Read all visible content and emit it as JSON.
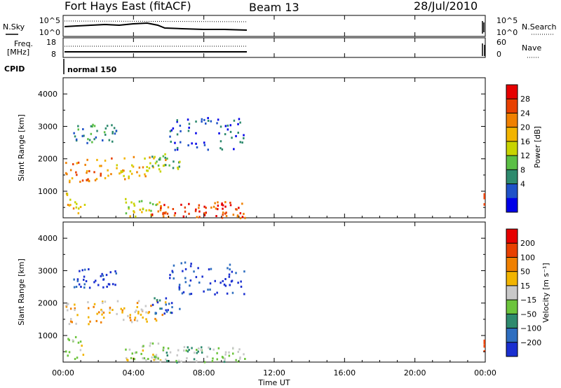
{
  "header": {
    "title": "Fort Hays East (fitACF)",
    "beam": "Beam 13",
    "date": "28/Jul/2010"
  },
  "noise_panel": {
    "left_label": "N.Sky",
    "right_label": "N.Search",
    "left_ticks": [
      "10^5",
      "10^0"
    ],
    "right_ticks": [
      "10^5",
      "10^0"
    ]
  },
  "freq_panel": {
    "left_label_1": "Freq.",
    "left_label_2": "[MHz]",
    "right_label": "Nave",
    "left_ticks": [
      "18",
      "8"
    ],
    "right_ticks": [
      "60",
      "0"
    ]
  },
  "cpid_panel": {
    "label": "CPID",
    "value": "normal 150"
  },
  "power_panel": {
    "ylabel": "Slant Range [km]",
    "yticks": [
      "4000",
      "3000",
      "2000",
      "1000"
    ],
    "colorbar_label": "Power [dB]",
    "colorbar_ticks": [
      "28",
      "24",
      "20",
      "16",
      "12",
      "8",
      "4"
    ],
    "colors": [
      "#0000e8",
      "#1f52c8",
      "#2e8a6e",
      "#5bbf45",
      "#c8d300",
      "#f2b400",
      "#f08000",
      "#e84000",
      "#e60000"
    ]
  },
  "velocity_panel": {
    "ylabel": "Slant Range [km]",
    "yticks": [
      "4000",
      "3000",
      "2000",
      "1000"
    ],
    "colorbar_label": "Velocity [m s⁻¹]",
    "colorbar_ticks": [
      "200",
      "100",
      "50",
      "15",
      "−15",
      "−50",
      "−100",
      "−200"
    ],
    "colors": [
      "#1a2fd0",
      "#2e6ec0",
      "#2e8a6e",
      "#6cc43c",
      "#c8c8c8",
      "#f2b400",
      "#f08000",
      "#e84000",
      "#e60000"
    ]
  },
  "x_axis": {
    "label": "Time UT",
    "ticks": [
      "00:00",
      "04:00",
      "08:00",
      "12:00",
      "16:00",
      "20:00",
      "00:00"
    ]
  },
  "chart_data": {
    "type": "heatmap",
    "x_range_hours": [
      0,
      24
    ],
    "y_range_km": [
      180,
      4500
    ],
    "data_end_hour": 10.3,
    "late_segment_hour": 23.9,
    "echo_regions": [
      {
        "t0": 0.1,
        "t1": 1.2,
        "r0": 300,
        "r1": 1000,
        "power_level": 5,
        "velocity_level": 4
      },
      {
        "t0": 0.1,
        "t1": 2.8,
        "r0": 1300,
        "r1": 2100,
        "power_level": 6,
        "velocity_level": 5
      },
      {
        "t0": 0.5,
        "t1": 3.0,
        "r0": 2500,
        "r1": 3100,
        "power_level": 2,
        "velocity_level": 0
      },
      {
        "t0": 3.0,
        "t1": 5.8,
        "r0": 1400,
        "r1": 2100,
        "power_level": 5,
        "velocity_level": 5
      },
      {
        "t0": 3.5,
        "t1": 5.5,
        "r0": 250,
        "r1": 800,
        "power_level": 4,
        "velocity_level": 4
      },
      {
        "t0": 5.0,
        "t1": 10.3,
        "r0": 200,
        "r1": 700,
        "power_level": 7,
        "velocity_level": 3
      },
      {
        "t0": 5.0,
        "t1": 6.6,
        "r0": 1700,
        "r1": 2200,
        "power_level": 3,
        "velocity_level": 1
      },
      {
        "t0": 6.0,
        "t1": 10.3,
        "r0": 2300,
        "r1": 3300,
        "power_level": 1,
        "velocity_level": 0
      }
    ]
  }
}
